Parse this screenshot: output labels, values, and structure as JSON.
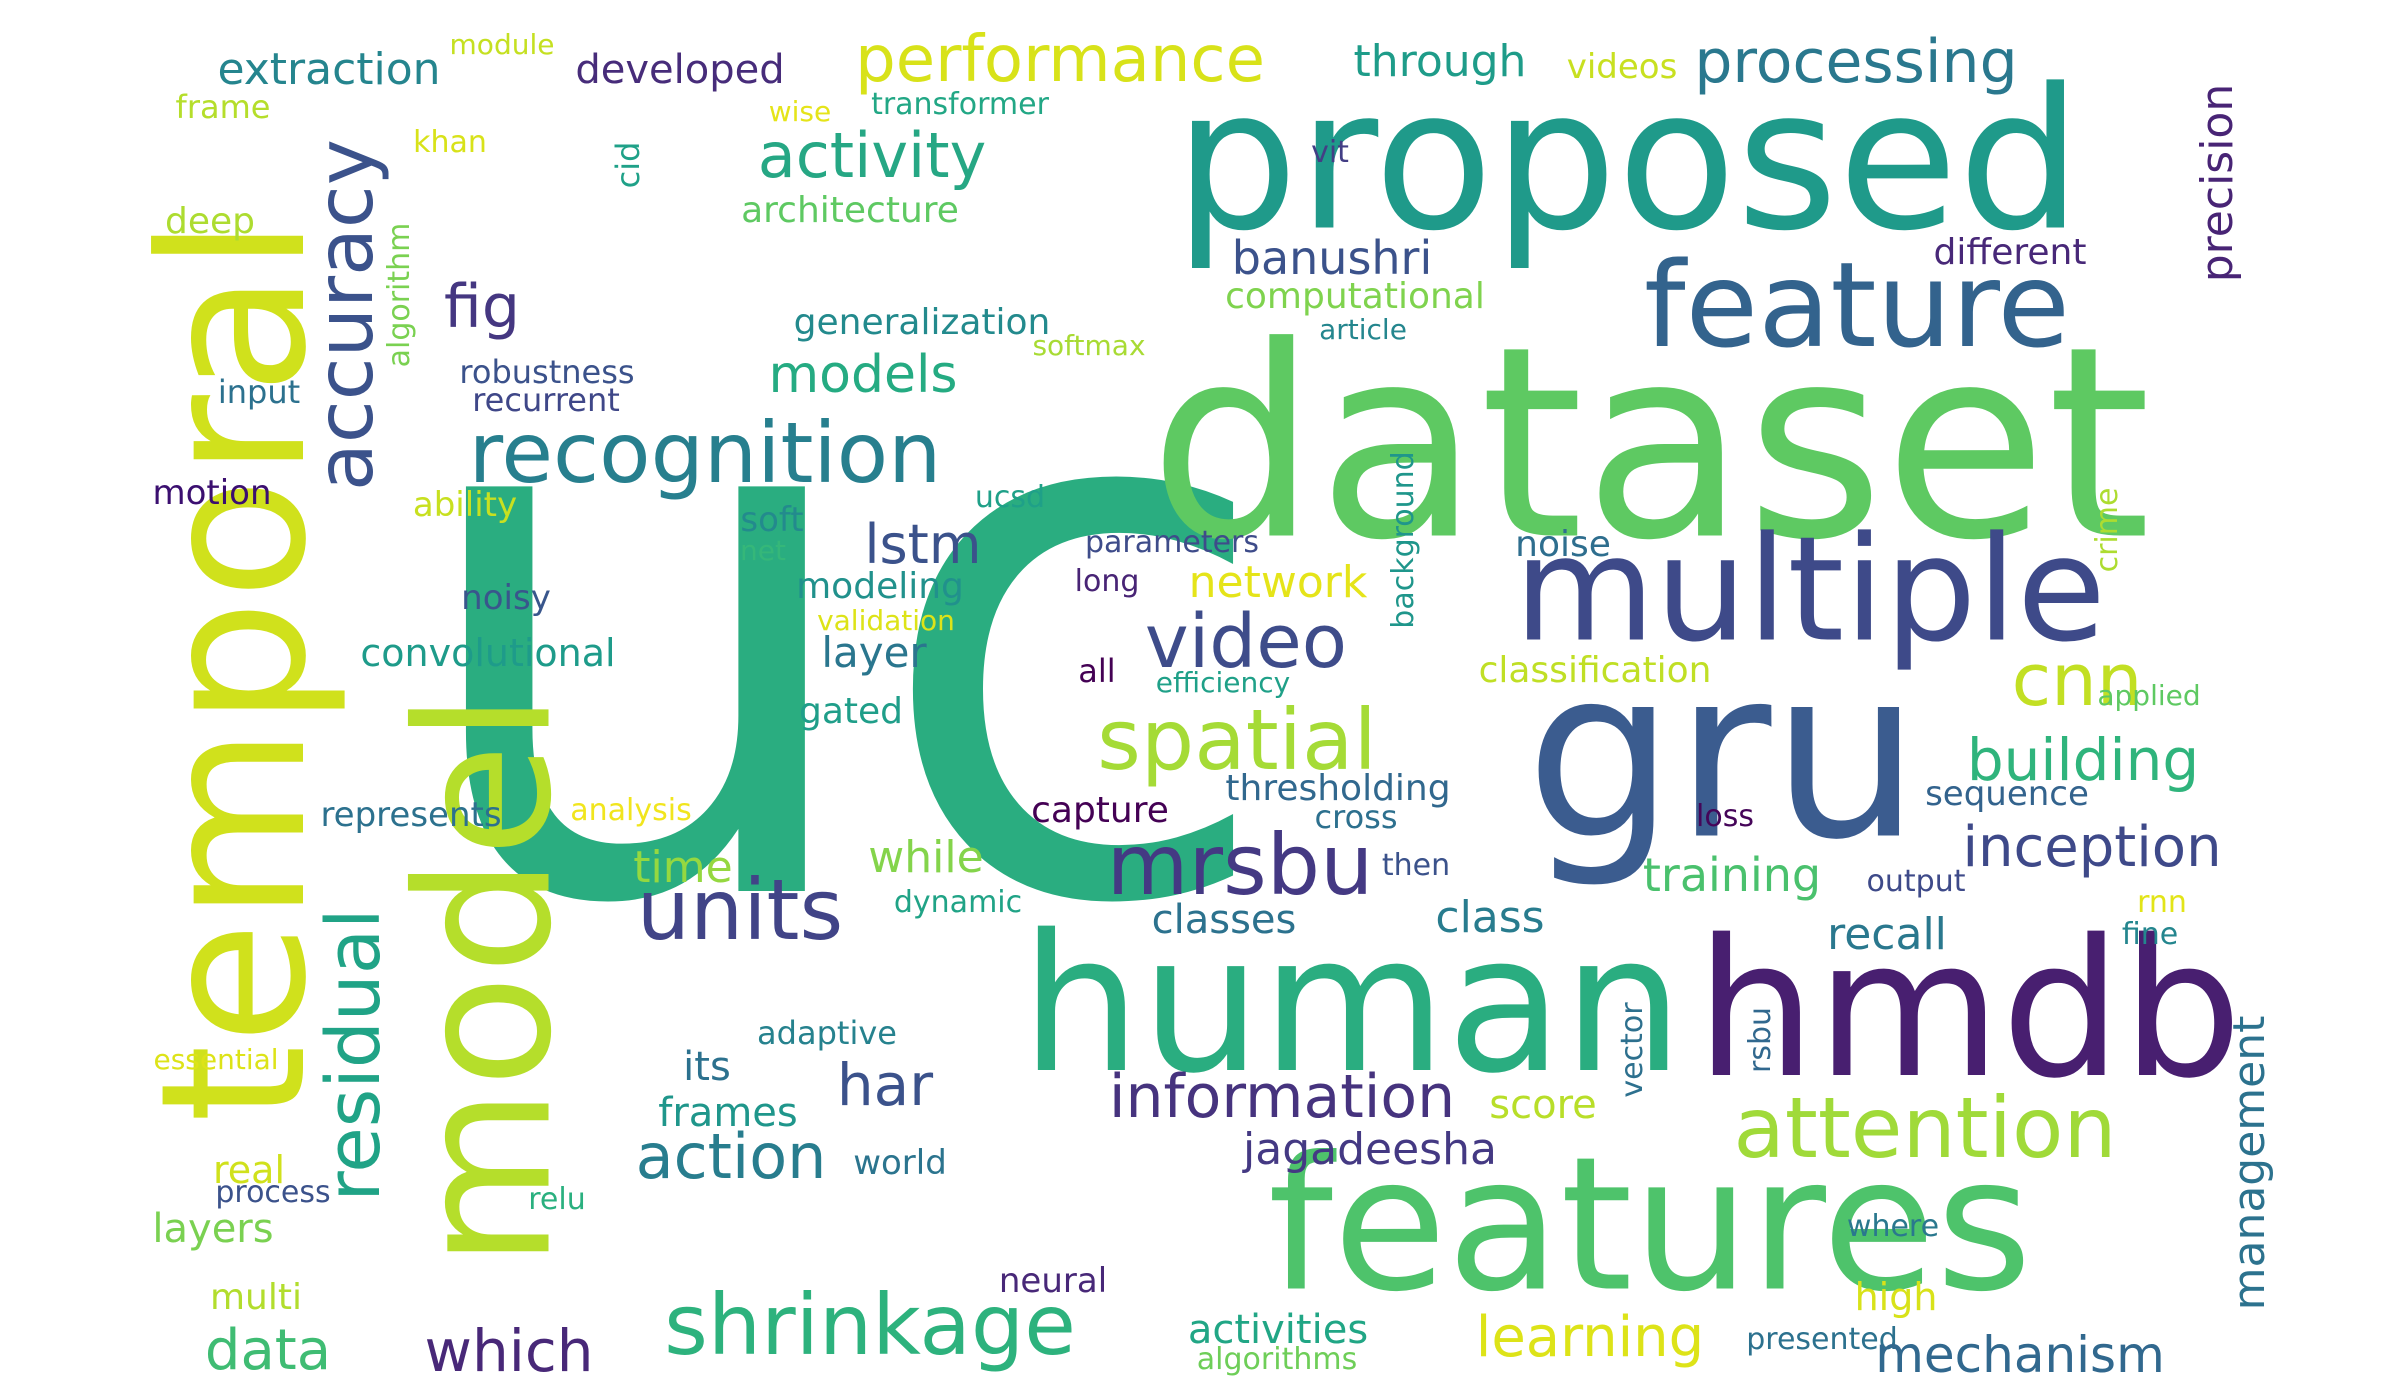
{
  "words": [
    {
      "text": "uc",
      "color": "#2aad80"
    },
    {
      "text": "dataset",
      "color": "#5ec962"
    },
    {
      "text": "proposed",
      "color": "#1f9a8a"
    },
    {
      "text": "gru",
      "color": "#3b5c8f"
    },
    {
      "text": "features",
      "color": "#4ec36b"
    },
    {
      "text": "human",
      "color": "#2aad80"
    },
    {
      "text": "hmdb",
      "color": "#481f70"
    },
    {
      "text": "temporal",
      "color": "#d0e11c"
    },
    {
      "text": "model",
      "color": "#b5de2b"
    },
    {
      "text": "multiple",
      "color": "#3e4a89"
    },
    {
      "text": "feature",
      "color": "#33638d"
    },
    {
      "text": "recognition",
      "color": "#277f8e"
    },
    {
      "text": "performance",
      "color": "#d8e219"
    },
    {
      "text": "processing",
      "color": "#2a788e"
    },
    {
      "text": "activity",
      "color": "#26a784"
    },
    {
      "text": "accuracy",
      "color": "#3b528b"
    },
    {
      "text": "residual",
      "color": "#20a386"
    },
    {
      "text": "video",
      "color": "#3e4c8a"
    },
    {
      "text": "spatial",
      "color": "#a5db36"
    },
    {
      "text": "mrsbu",
      "color": "#443983"
    },
    {
      "text": "units",
      "color": "#414487"
    },
    {
      "text": "shrinkage",
      "color": "#2db27d"
    },
    {
      "text": "attention",
      "color": "#a0da39"
    },
    {
      "text": "cnn",
      "color": "#c2df23"
    },
    {
      "text": "building",
      "color": "#2fb47c"
    },
    {
      "text": "inception",
      "color": "#3e4989"
    },
    {
      "text": "information",
      "color": "#46337e"
    },
    {
      "text": "action",
      "color": "#287d8e"
    },
    {
      "text": "management",
      "color": "#2c728e"
    },
    {
      "text": "precision",
      "color": "#482475"
    },
    {
      "text": "extraction",
      "color": "#25858e"
    },
    {
      "text": "developed",
      "color": "#472c7a"
    },
    {
      "text": "through",
      "color": "#1e9c89"
    },
    {
      "text": "videos",
      "color": "#c8e020"
    },
    {
      "text": "module",
      "color": "#c5e021"
    },
    {
      "text": "frame",
      "color": "#b5de2b"
    },
    {
      "text": "wise",
      "color": "#e5e419"
    },
    {
      "text": "transformer",
      "color": "#22a785"
    },
    {
      "text": "khan",
      "color": "#d8e219"
    },
    {
      "text": "cid",
      "color": "#1fa188"
    },
    {
      "text": "vit",
      "color": "#433e85"
    },
    {
      "text": "architecture",
      "color": "#5ec962"
    },
    {
      "text": "deep",
      "color": "#addc30"
    },
    {
      "text": "algorithm",
      "color": "#7ad151"
    },
    {
      "text": "fig",
      "color": "#453781"
    },
    {
      "text": "banushri",
      "color": "#3b528b"
    },
    {
      "text": "different",
      "color": "#482878"
    },
    {
      "text": "computational",
      "color": "#7fd34e"
    },
    {
      "text": "article",
      "color": "#24868e"
    },
    {
      "text": "generalization",
      "color": "#238a8d"
    },
    {
      "text": "softmax",
      "color": "#a8db34"
    },
    {
      "text": "models",
      "color": "#25ab82"
    },
    {
      "text": "input",
      "color": "#2c718e"
    },
    {
      "text": "robustness",
      "color": "#3b528b"
    },
    {
      "text": "recurrent",
      "color": "#3f4788"
    },
    {
      "text": "motion",
      "color": "#3b0f70"
    },
    {
      "text": "ability",
      "color": "#c8e020"
    },
    {
      "text": "soft",
      "color": "#238a8d"
    },
    {
      "text": "lstm",
      "color": "#3b528b"
    },
    {
      "text": "ucsd",
      "color": "#1fa088"
    },
    {
      "text": "parameters",
      "color": "#3e4c8a"
    },
    {
      "text": "background",
      "color": "#1f968b"
    },
    {
      "text": "crime",
      "color": "#addc30"
    },
    {
      "text": "noise",
      "color": "#2e6e8e"
    },
    {
      "text": "network",
      "color": "#e5e419"
    },
    {
      "text": "net",
      "color": "#35b779"
    },
    {
      "text": "modeling",
      "color": "#21918c"
    },
    {
      "text": "noisy",
      "color": "#39568c"
    },
    {
      "text": "long",
      "color": "#482475"
    },
    {
      "text": "validation",
      "color": "#dde318"
    },
    {
      "text": "convolutional",
      "color": "#1e9b8a"
    },
    {
      "text": "layer",
      "color": "#2a768e"
    },
    {
      "text": "all",
      "color": "#440154"
    },
    {
      "text": "efficiency",
      "color": "#1fa088"
    },
    {
      "text": "classification",
      "color": "#c0df25"
    },
    {
      "text": "applied",
      "color": "#5ec962"
    },
    {
      "text": "gated",
      "color": "#1f9e89"
    },
    {
      "text": "represents",
      "color": "#2c718e"
    },
    {
      "text": "analysis",
      "color": "#f1e51d"
    },
    {
      "text": "capture",
      "color": "#440154"
    },
    {
      "text": "thresholding",
      "color": "#31688e"
    },
    {
      "text": "cross",
      "color": "#2d708e"
    },
    {
      "text": "loss",
      "color": "#450559"
    },
    {
      "text": "sequence",
      "color": "#33638d"
    },
    {
      "text": "time",
      "color": "#95d840"
    },
    {
      "text": "while",
      "color": "#84d44b"
    },
    {
      "text": "training",
      "color": "#4ac16d"
    },
    {
      "text": "then",
      "color": "#3b528b"
    },
    {
      "text": "output",
      "color": "#3e4a89"
    },
    {
      "text": "dynamic",
      "color": "#20a386"
    },
    {
      "text": "classes",
      "color": "#2c728e"
    },
    {
      "text": "class",
      "color": "#287c8e"
    },
    {
      "text": "recall",
      "color": "#2a788e"
    },
    {
      "text": "rnn",
      "color": "#e2e418"
    },
    {
      "text": "fine",
      "color": "#24868e"
    },
    {
      "text": "har",
      "color": "#3b528b"
    },
    {
      "text": "adaptive",
      "color": "#26828e"
    },
    {
      "text": "vector",
      "color": "#2d708e"
    },
    {
      "text": "rsbu",
      "color": "#31688e"
    },
    {
      "text": "essential",
      "color": "#dde318"
    },
    {
      "text": "its",
      "color": "#2c718e"
    },
    {
      "text": "frames",
      "color": "#1f968b"
    },
    {
      "text": "score",
      "color": "#b8de29"
    },
    {
      "text": "jagadeesha",
      "color": "#443983"
    },
    {
      "text": "real",
      "color": "#d0e11c"
    },
    {
      "text": "world",
      "color": "#2b748e"
    },
    {
      "text": "process",
      "color": "#3b528b"
    },
    {
      "text": "relu",
      "color": "#2ab07f"
    },
    {
      "text": "layers",
      "color": "#7ad151"
    },
    {
      "text": "where",
      "color": "#2a788e"
    },
    {
      "text": "multi",
      "color": "#b2dd2d"
    },
    {
      "text": "neural",
      "color": "#482878"
    },
    {
      "text": "high",
      "color": "#d8e219"
    },
    {
      "text": "data",
      "color": "#3fbc73"
    },
    {
      "text": "which",
      "color": "#482878"
    },
    {
      "text": "activities",
      "color": "#21a685"
    },
    {
      "text": "learning",
      "color": "#dde318"
    },
    {
      "text": "presented",
      "color": "#2c718e"
    },
    {
      "text": "mechanism",
      "color": "#31688e"
    },
    {
      "text": "algorithms",
      "color": "#6ece58"
    }
  ]
}
